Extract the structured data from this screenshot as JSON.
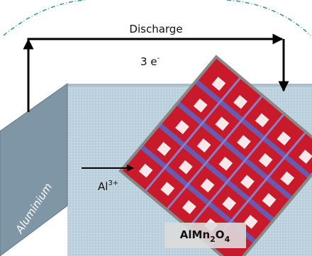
{
  "labels": {
    "discharge": "Discharge",
    "electrons": {
      "base": "3 e",
      "sup": "-"
    },
    "ion": {
      "base": "Al",
      "sup": "3+"
    },
    "electrode": "Aluminium",
    "compound": [
      "AlMn",
      "2",
      "O",
      "4"
    ]
  }
}
